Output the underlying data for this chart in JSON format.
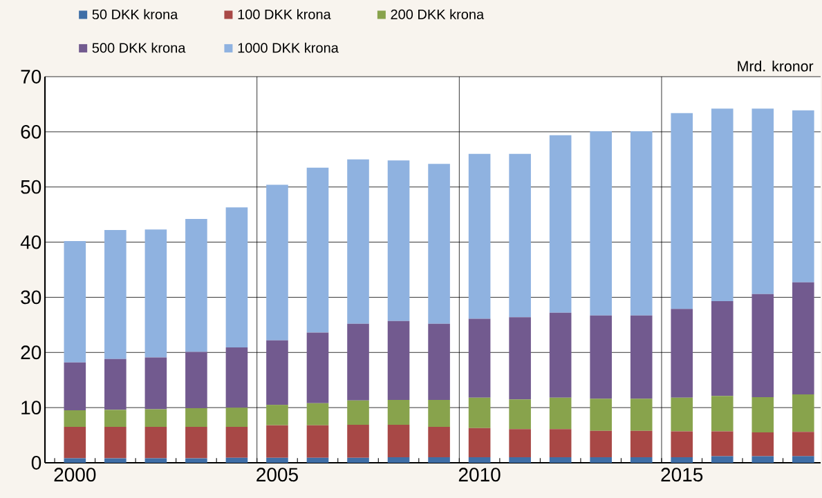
{
  "chart_data": {
    "type": "bar",
    "stacked": true,
    "ylabel": "Mrd. kronor",
    "grid": true,
    "legend": "top",
    "categories": [
      "2000",
      null,
      null,
      null,
      null,
      "2005",
      null,
      null,
      null,
      null,
      "2010",
      null,
      null,
      null,
      null,
      "2015",
      null,
      null,
      null
    ],
    "ylim": [
      0,
      70
    ],
    "yticks": [
      0,
      10,
      20,
      30,
      40,
      50,
      60,
      70
    ],
    "series": [
      {
        "name": "50 DKK krona",
        "color": "#3f6ea6",
        "values": [
          0.8,
          0.8,
          0.8,
          0.8,
          0.9,
          0.9,
          0.9,
          0.9,
          1.0,
          1.0,
          1.0,
          1.0,
          1.0,
          1.0,
          1.0,
          1.0,
          1.2,
          1.2,
          1.2
        ]
      },
      {
        "name": "100 DKK krona",
        "color": "#a84846",
        "values": [
          5.7,
          5.7,
          5.7,
          5.7,
          5.6,
          5.9,
          5.9,
          6.0,
          5.9,
          5.5,
          5.3,
          5.1,
          5.1,
          4.8,
          4.8,
          4.7,
          4.5,
          4.3,
          4.4
        ]
      },
      {
        "name": "200 DKK krona",
        "color": "#88a34c",
        "values": [
          3.0,
          3.1,
          3.2,
          3.4,
          3.5,
          3.7,
          4.0,
          4.4,
          4.5,
          4.9,
          5.5,
          5.4,
          5.7,
          5.8,
          5.8,
          6.1,
          6.4,
          6.4,
          6.8
        ]
      },
      {
        "name": "500 DKK krona",
        "color": "#725a8f",
        "values": [
          8.7,
          9.2,
          9.4,
          10.2,
          10.9,
          11.7,
          12.8,
          13.9,
          14.3,
          13.8,
          14.3,
          14.9,
          15.4,
          15.1,
          15.1,
          16.1,
          17.2,
          18.7,
          20.3
        ]
      },
      {
        "name": "1000 DKK krona",
        "color": "#8fb2e0",
        "values": [
          22.0,
          23.4,
          23.2,
          24.1,
          25.4,
          28.2,
          29.9,
          29.8,
          29.1,
          29.0,
          29.9,
          29.6,
          32.2,
          33.4,
          33.4,
          35.5,
          34.9,
          33.6,
          31.2
        ]
      }
    ]
  }
}
